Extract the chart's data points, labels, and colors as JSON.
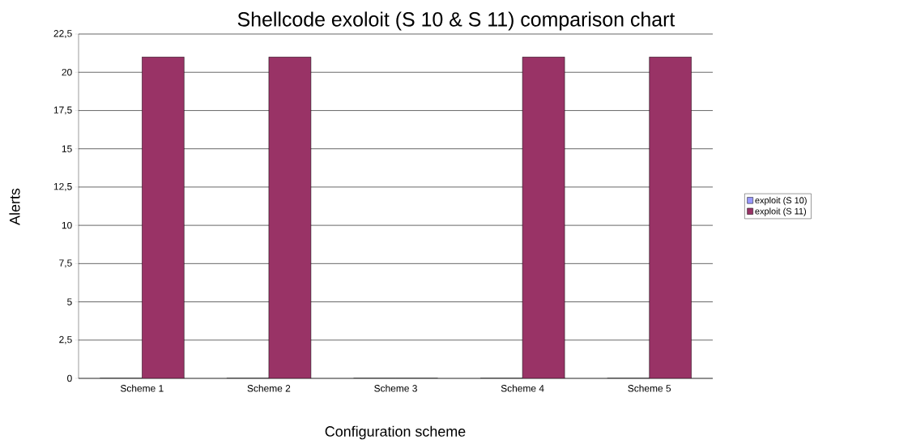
{
  "chart_data": {
    "type": "bar",
    "title": "Shellcode exoloit (S 10 & S 11) comparison chart",
    "xlabel": "Configuration scheme",
    "ylabel": "Alerts",
    "categories": [
      "Scheme 1",
      "Scheme 2",
      "Scheme 3",
      "Scheme 4",
      "Scheme 5"
    ],
    "series": [
      {
        "name": "exploit (S 10)",
        "color": "#9999ff",
        "values": [
          0,
          0,
          0,
          0,
          0
        ]
      },
      {
        "name": "exploit (S 11)",
        "color": "#993366",
        "values": [
          21,
          21,
          0,
          21,
          21
        ]
      }
    ],
    "ylim": [
      0,
      22.5
    ],
    "yticks": [
      0,
      {
        "value": 2.5,
        "label": "2,5"
      },
      5,
      {
        "value": 7.5,
        "label": "7,5"
      },
      10,
      {
        "value": 12.5,
        "label": "12,5"
      },
      15,
      {
        "value": 17.5,
        "label": "17,5"
      },
      20,
      {
        "value": 22.5,
        "label": "22,5"
      }
    ],
    "grid": "y",
    "legend": "right"
  }
}
